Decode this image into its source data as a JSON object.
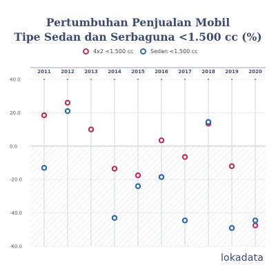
{
  "chart_data": {
    "type": "scatter",
    "title_lines": [
      "Pertumbuhan Penjualan Mobil",
      "Tipe Sedan dan Serbaguna <1.500 cc (%)"
    ],
    "categories": [
      "2011",
      "2012",
      "2013",
      "2014",
      "2015",
      "2016",
      "2017",
      "2018",
      "2019",
      "2020"
    ],
    "series": [
      {
        "name": "4x2 <1.500 cc",
        "color": "#b5345f",
        "values": [
          18.5,
          26.0,
          10.0,
          -13.5,
          -17.5,
          3.5,
          -6.5,
          13.5,
          -12.0,
          -47.5
        ]
      },
      {
        "name": "Sedan <1.500 cc",
        "color": "#2f6aa5",
        "values": [
          -13.0,
          21.0,
          null,
          -43.0,
          -24.0,
          -18.5,
          -44.5,
          14.5,
          -49.0,
          -44.5
        ]
      }
    ],
    "yticks": [
      "40.0",
      "20.0",
      "0.0",
      "-20.0",
      "-40.0",
      "-60.0"
    ],
    "ylim": [
      -60,
      40
    ],
    "grid": true,
    "legend_position": "top-center"
  },
  "brand": "lokadata"
}
